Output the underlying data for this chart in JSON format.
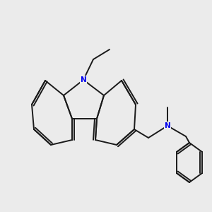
{
  "background_color": "#ebebeb",
  "bond_color": "#1a1a1a",
  "N_color": "#0000ee",
  "C_color": "#1a1a1a",
  "font_size_atom": 7.5,
  "linewidth": 1.4
}
